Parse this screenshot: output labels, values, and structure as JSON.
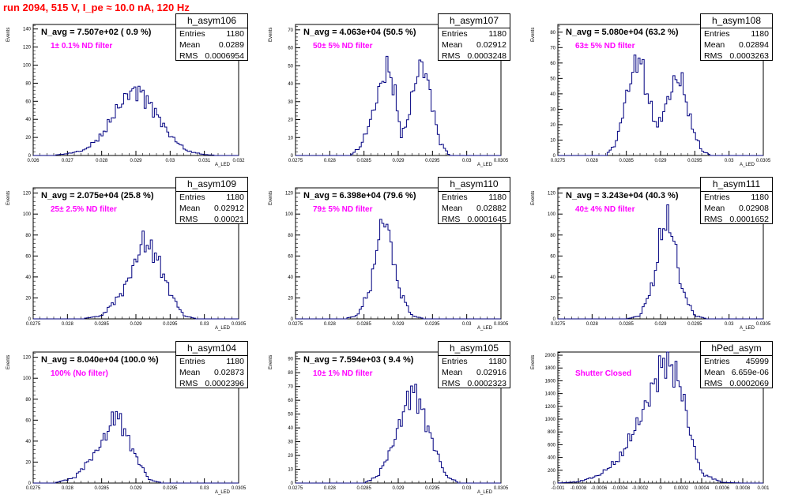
{
  "run_title": "run 2094,   515 V, I_pe ≈ 10.0 nA, 120 Hz",
  "colors": {
    "title": "#ff0000",
    "annotation": "#ff00ff",
    "histogram_line": "#000080",
    "frame": "#000000"
  },
  "panels": [
    {
      "name": "h_asym106",
      "n_avg": "N_avg = 7.507e+02 ( 0.9 %)",
      "filter": "1± 0.1% ND filter",
      "entries": "1180",
      "mean": "0.0289",
      "rms": "0.0006954",
      "ylabel": "Events",
      "xlabel": "A_LED",
      "yticks": [
        "0",
        "20",
        "40",
        "60",
        "80",
        "100",
        "120",
        "140"
      ],
      "xticks": [
        "0.026",
        "0.027",
        "0.028",
        "0.029",
        "0.03",
        "0.031",
        "0.032"
      ]
    },
    {
      "name": "h_asym107",
      "n_avg": "N_avg = 4.063e+04 (50.5 %)",
      "filter": "50± 5% ND filter",
      "entries": "1180",
      "mean": "0.02912",
      "rms": "0.0003248",
      "ylabel": "Events",
      "xlabel": "A_LED",
      "yticks": [
        "0",
        "10",
        "20",
        "30",
        "40",
        "50",
        "60",
        "70"
      ],
      "xticks": [
        "0.0275",
        "0.028",
        "0.0285",
        "0.029",
        "0.0295",
        "0.03",
        "0.0305"
      ]
    },
    {
      "name": "h_asym108",
      "n_avg": "N_avg = 5.080e+04 (63.2 %)",
      "filter": "63± 5% ND filter",
      "entries": "1180",
      "mean": "0.02894",
      "rms": "0.0003263",
      "ylabel": "Events",
      "xlabel": "A_LED",
      "yticks": [
        "0",
        "10",
        "20",
        "30",
        "40",
        "50",
        "60",
        "70",
        "80"
      ],
      "xticks": [
        "0.0275",
        "0.028",
        "0.0285",
        "0.029",
        "0.0295",
        "0.03",
        "0.0305"
      ]
    },
    {
      "name": "h_asym109",
      "n_avg": "N_avg = 2.075e+04 (25.8 %)",
      "filter": "25± 2.5% ND filter",
      "entries": "1180",
      "mean": "0.02912",
      "rms": "0.00021",
      "ylabel": "Events",
      "xlabel": "A_LED",
      "yticks": [
        "0",
        "20",
        "40",
        "60",
        "80",
        "100",
        "120"
      ],
      "xticks": [
        "0.0275",
        "0.028",
        "0.0285",
        "0.029",
        "0.0295",
        "0.03",
        "0.0305"
      ]
    },
    {
      "name": "h_asym110",
      "n_avg": "N_avg = 6.398e+04 (79.6 %)",
      "filter": "79± 5% ND filter",
      "entries": "1180",
      "mean": "0.02882",
      "rms": "0.0001645",
      "ylabel": "Events",
      "xlabel": "A_LED",
      "yticks": [
        "0",
        "20",
        "40",
        "60",
        "80",
        "100",
        "120"
      ],
      "xticks": [
        "0.0275",
        "0.028",
        "0.0285",
        "0.029",
        "0.0295",
        "0.03",
        "0.0305"
      ]
    },
    {
      "name": "h_asym111",
      "n_avg": "N_avg = 3.243e+04 (40.3 %)",
      "filter": "40± 4% ND filter",
      "entries": "1180",
      "mean": "0.02908",
      "rms": "0.0001652",
      "ylabel": "Events",
      "xlabel": "A_LED",
      "yticks": [
        "0",
        "20",
        "40",
        "60",
        "80",
        "100",
        "120"
      ],
      "xticks": [
        "0.0275",
        "0.028",
        "0.0285",
        "0.029",
        "0.0295",
        "0.03",
        "0.0305"
      ]
    },
    {
      "name": "h_asym104",
      "n_avg": "N_avg = 8.040e+04 (100.0 %)",
      "filter": "100% (No filter)",
      "entries": "1180",
      "mean": "0.02873",
      "rms": "0.0002396",
      "ylabel": "Events",
      "xlabel": "A_LED",
      "yticks": [
        "0",
        "20",
        "40",
        "60",
        "80",
        "100",
        "120"
      ],
      "xticks": [
        "0.0275",
        "0.028",
        "0.0285",
        "0.029",
        "0.0295",
        "0.03",
        "0.0305"
      ]
    },
    {
      "name": "h_asym105",
      "n_avg": "N_avg = 7.594e+03 ( 9.4 %)",
      "filter": "10± 1% ND filter",
      "entries": "1180",
      "mean": "0.02916",
      "rms": "0.0002323",
      "ylabel": "Events",
      "xlabel": "A_LED",
      "yticks": [
        "0",
        "10",
        "20",
        "30",
        "40",
        "50",
        "60",
        "70",
        "80",
        "90"
      ],
      "xticks": [
        "0.0275",
        "0.028",
        "0.0285",
        "0.029",
        "0.0295",
        "0.03",
        "0.0305"
      ]
    },
    {
      "name": "hPed_asym",
      "n_avg": "",
      "filter": "Shutter Closed",
      "entries": "45999",
      "mean": "6.659e-06",
      "rms": "0.0002069",
      "ylabel": "Events",
      "xlabel": "",
      "yticks": [
        "0",
        "200",
        "400",
        "600",
        "800",
        "1000",
        "1200",
        "1400",
        "1600",
        "1800",
        "2000"
      ],
      "xticks": [
        "-0.001",
        "-0.0008",
        "-0.0006",
        "-0.0004",
        "-0.0002",
        "0",
        "0.0002",
        "0.0004",
        "0.0006",
        "0.0008",
        "0.001"
      ]
    }
  ],
  "chart_data": [
    {
      "type": "histogram",
      "name": "h_asym106",
      "xlim": [
        0.026,
        0.032
      ],
      "ylim": [
        0,
        145
      ],
      "x": [
        0.027,
        0.0275,
        0.028,
        0.0284,
        0.0288,
        0.0291,
        0.0295,
        0.03,
        0.0305,
        0.031
      ],
      "y": [
        2,
        6,
        22,
        48,
        70,
        72,
        52,
        22,
        5,
        1
      ]
    },
    {
      "type": "histogram",
      "name": "h_asym107",
      "xlim": [
        0.0275,
        0.0305
      ],
      "ylim": [
        0,
        73
      ],
      "x": [
        0.02845,
        0.0286,
        0.02875,
        0.02885,
        0.02895,
        0.02905,
        0.02915,
        0.02925,
        0.02935,
        0.02945,
        0.0296
      ],
      "y": [
        5,
        20,
        40,
        50,
        35,
        10,
        22,
        42,
        52,
        38,
        8
      ]
    },
    {
      "type": "histogram",
      "name": "h_asym108",
      "xlim": [
        0.0275,
        0.0305
      ],
      "ylim": [
        0,
        85
      ],
      "x": [
        0.02835,
        0.0285,
        0.0286,
        0.0287,
        0.0288,
        0.02895,
        0.0291,
        0.0292,
        0.0293,
        0.02945,
        0.0296
      ],
      "y": [
        8,
        38,
        55,
        65,
        40,
        18,
        35,
        48,
        50,
        20,
        3
      ]
    },
    {
      "type": "histogram",
      "name": "h_asym109",
      "xlim": [
        0.0275,
        0.0305
      ],
      "ylim": [
        0,
        125
      ],
      "x": [
        0.0285,
        0.0288,
        0.029,
        0.0291,
        0.0293,
        0.0295,
        0.0297
      ],
      "y": [
        3,
        25,
        55,
        75,
        60,
        25,
        3
      ]
    },
    {
      "type": "histogram",
      "name": "h_asym110",
      "xlim": [
        0.0275,
        0.0305
      ],
      "ylim": [
        0,
        125
      ],
      "x": [
        0.0284,
        0.0286,
        0.0287,
        0.0288,
        0.0289,
        0.029,
        0.0292
      ],
      "y": [
        3,
        30,
        75,
        98,
        70,
        30,
        3
      ]
    },
    {
      "type": "histogram",
      "name": "h_asym111",
      "xlim": [
        0.0275,
        0.0305
      ],
      "ylim": [
        0,
        125
      ],
      "x": [
        0.0287,
        0.0289,
        0.029,
        0.0291,
        0.0292,
        0.0293,
        0.0295
      ],
      "y": [
        3,
        35,
        80,
        95,
        75,
        30,
        3
      ]
    },
    {
      "type": "histogram",
      "name": "h_asym104",
      "xlim": [
        0.0275,
        0.0305
      ],
      "ylim": [
        0,
        125
      ],
      "x": [
        0.0281,
        0.0284,
        0.0286,
        0.0287,
        0.0288,
        0.029,
        0.0292
      ],
      "y": [
        5,
        28,
        50,
        68,
        55,
        25,
        3
      ]
    },
    {
      "type": "histogram",
      "name": "h_asym105",
      "xlim": [
        0.0275,
        0.0305
      ],
      "ylim": [
        0,
        95
      ],
      "x": [
        0.0287,
        0.0289,
        0.0291,
        0.0292,
        0.0293,
        0.0295,
        0.0297
      ],
      "y": [
        5,
        25,
        55,
        68,
        60,
        30,
        5
      ]
    },
    {
      "type": "histogram",
      "name": "hPed_asym",
      "xlim": [
        -0.001,
        0.001
      ],
      "ylim": [
        0,
        2050
      ],
      "x": [
        -0.0008,
        -0.0006,
        -0.0004,
        -0.0002,
        -0.0001,
        0.0,
        5e-05,
        0.0001,
        0.0002,
        0.0003,
        0.0004,
        0.0006
      ],
      "y": [
        20,
        120,
        380,
        1000,
        1400,
        1800,
        1950,
        1850,
        1500,
        700,
        150,
        10
      ]
    }
  ]
}
